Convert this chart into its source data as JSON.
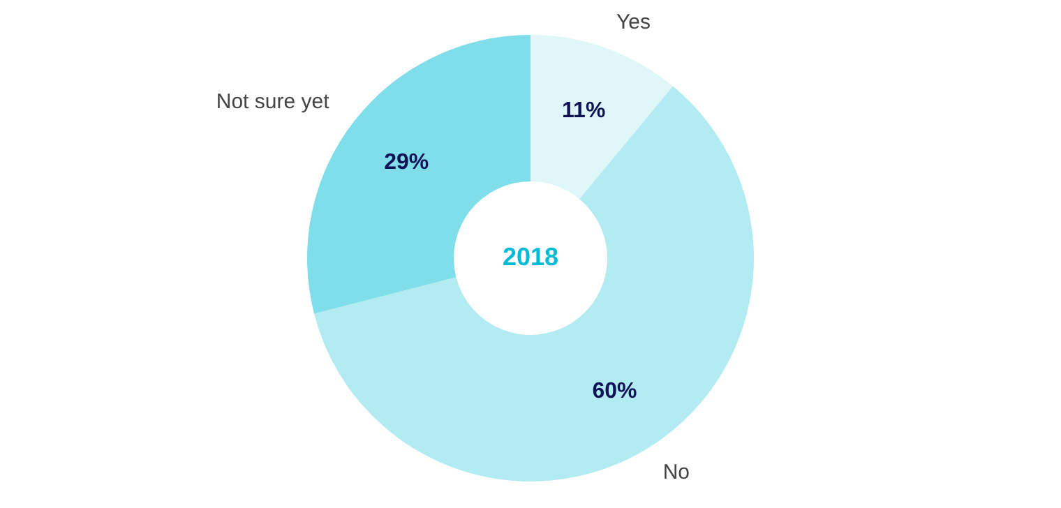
{
  "chart_data": {
    "type": "donut",
    "title": "2018",
    "categories": [
      "Yes",
      "No",
      "Not sure yet"
    ],
    "values": [
      11,
      60,
      29
    ],
    "colors": [
      "#e0f7fa",
      "#b2ebf2",
      "#80deea"
    ],
    "value_labels": [
      "11%",
      "60%",
      "29%"
    ]
  }
}
